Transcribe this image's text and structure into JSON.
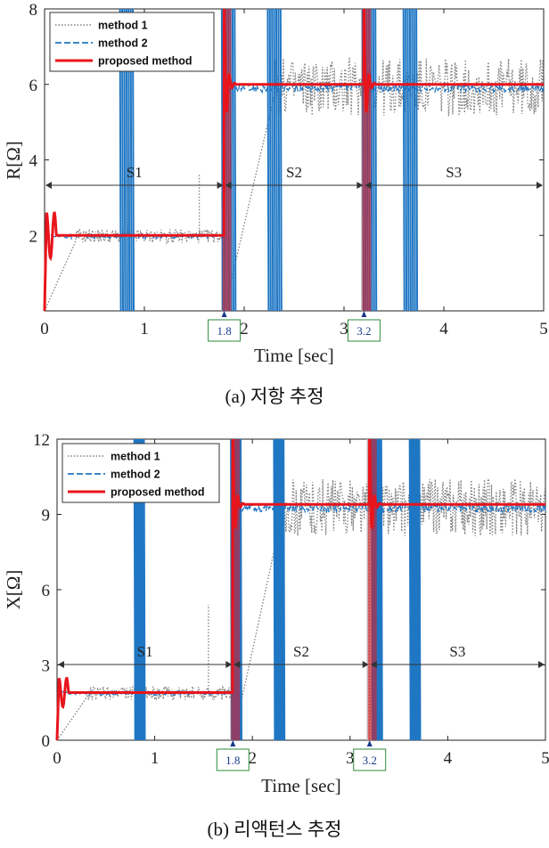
{
  "chart_data": [
    {
      "type": "line",
      "caption": "(a)  저항  추정",
      "xlabel": "Time [sec]",
      "ylabel": "R[Ω]",
      "xlim": [
        0,
        5
      ],
      "ylim": [
        0,
        8
      ],
      "xticks": [
        "0",
        "1",
        "2",
        "3",
        "4",
        "5"
      ],
      "yticks": [
        "2",
        "4",
        "6",
        "8"
      ],
      "markers": [
        "1.8",
        "3.2"
      ],
      "segments": [
        {
          "label": "S1",
          "from": 0,
          "to": 1.8
        },
        {
          "label": "S2",
          "from": 1.8,
          "to": 3.2
        },
        {
          "label": "S3",
          "from": 3.2,
          "to": 5
        }
      ],
      "legend": [
        "method 1",
        "method 2",
        "proposed method"
      ],
      "legend_position": "top-left",
      "steady_values": [
        2,
        6,
        6
      ],
      "colors": {
        "method1": "#808080",
        "method2": "#1f77c4",
        "proposed": "#e8141c",
        "shade": "#c8c8c8"
      }
    },
    {
      "type": "line",
      "caption": "(b)  리액턴스  추정",
      "xlabel": "Time [sec]",
      "ylabel": "X[Ω]",
      "xlim": [
        0,
        5
      ],
      "ylim": [
        0,
        12
      ],
      "xticks": [
        "0",
        "1",
        "2",
        "3",
        "4",
        "5"
      ],
      "yticks": [
        "0",
        "3",
        "6",
        "9",
        "12"
      ],
      "markers": [
        "1.8",
        "3.2"
      ],
      "segments": [
        {
          "label": "S1",
          "from": 0,
          "to": 1.8
        },
        {
          "label": "S2",
          "from": 1.8,
          "to": 3.2
        },
        {
          "label": "S3",
          "from": 3.2,
          "to": 5
        }
      ],
      "legend": [
        "method 1",
        "method 2",
        "proposed method"
      ],
      "legend_position": "top-left",
      "steady_values": [
        1.9,
        9.4,
        9.4
      ],
      "colors": {
        "method1": "#808080",
        "method2": "#1f77c4",
        "proposed": "#e8141c",
        "shade": "#c8c8c8"
      }
    }
  ]
}
